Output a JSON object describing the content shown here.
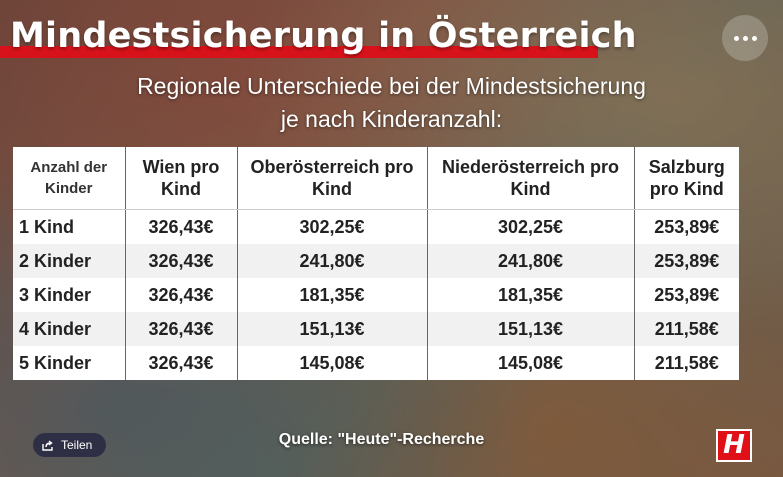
{
  "header": {
    "title": "Mindestsicherung in Österreich",
    "subtitle_line1": "Regionale Unterschiede bei der Mindestsicherung",
    "subtitle_line2": "je nach Kinderanzahl:"
  },
  "table": {
    "headers": [
      "Anzahl der Kinder",
      "Wien pro Kind",
      "Oberösterreich pro Kind",
      "Niederösterreich pro Kind",
      "Salzburg pro Kind"
    ],
    "rows": [
      [
        "1 Kind",
        "326,43€",
        "302,25€",
        "302,25€",
        "253,89€"
      ],
      [
        "2 Kinder",
        "326,43€",
        "241,80€",
        "241,80€",
        "253,89€"
      ],
      [
        "3 Kinder",
        "326,43€",
        "181,35€",
        "181,35€",
        "253,89€"
      ],
      [
        "4 Kinder",
        "326,43€",
        "151,13€",
        "151,13€",
        "211,58€"
      ],
      [
        "5 Kinder",
        "326,43€",
        "145,08€",
        "145,08€",
        "211,58€"
      ]
    ]
  },
  "footer": {
    "share_label": "Teilen",
    "source": "Quelle: \"Heute\"-Recherche",
    "logo_letter": "H"
  },
  "icons": {
    "more": "more-options-icon",
    "share": "share-icon"
  },
  "colors": {
    "brand_red": "#d8121a",
    "share_bg": "#2e2f45"
  }
}
